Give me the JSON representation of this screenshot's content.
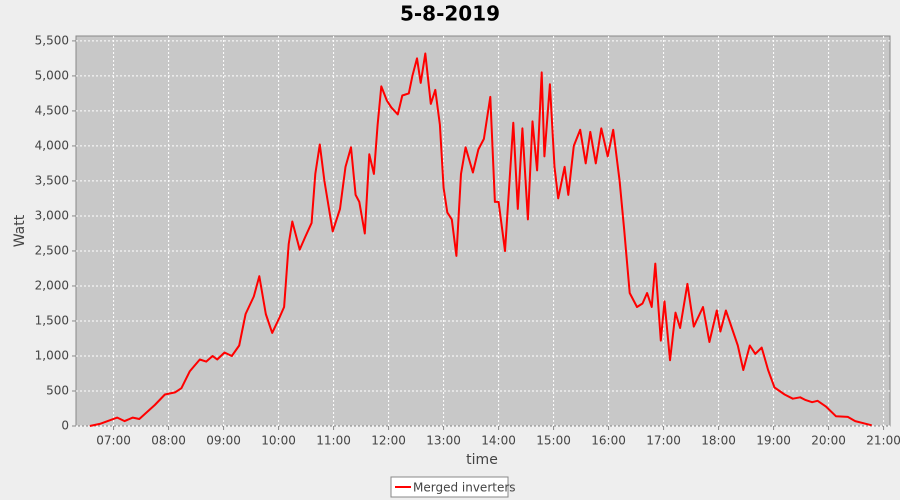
{
  "chart_data": {
    "type": "line",
    "title": "5-8-2019",
    "x_label": "time",
    "y_label": "Watt",
    "x": [
      "06:34",
      "06:45",
      "07:04",
      "07:12",
      "07:21",
      "07:28",
      "07:45",
      "07:56",
      "08:07",
      "08:14",
      "08:23",
      "08:34",
      "08:41",
      "08:48",
      "08:53",
      "09:01",
      "09:09",
      "09:17",
      "09:24",
      "09:33",
      "09:39",
      "09:46",
      "09:53",
      "10:01",
      "10:06",
      "10:11",
      "10:15",
      "10:23",
      "10:29",
      "10:36",
      "10:40",
      "10:45",
      "10:50",
      "10:59",
      "11:07",
      "11:13",
      "11:19",
      "11:24",
      "11:28",
      "11:34",
      "11:39",
      "11:44",
      "11:48",
      "11:52",
      "11:58",
      "12:03",
      "12:10",
      "12:15",
      "12:22",
      "12:26",
      "12:31",
      "12:35",
      "12:40",
      "12:46",
      "12:51",
      "12:56",
      "13:00",
      "13:04",
      "13:09",
      "13:14",
      "13:19",
      "13:24",
      "13:32",
      "13:38",
      "13:44",
      "13:51",
      "13:56",
      "14:00",
      "14:07",
      "14:16",
      "14:21",
      "14:26",
      "14:32",
      "14:37",
      "14:42",
      "14:47",
      "14:50",
      "14:56",
      "15:01",
      "15:05",
      "15:12",
      "15:16",
      "15:22",
      "15:29",
      "15:35",
      "15:40",
      "15:46",
      "15:52",
      "15:59",
      "16:05",
      "16:12",
      "16:17",
      "16:23",
      "16:31",
      "16:37",
      "16:42",
      "16:47",
      "16:51",
      "16:57",
      "17:01",
      "17:07",
      "17:13",
      "17:18",
      "17:26",
      "17:33",
      "17:43",
      "17:50",
      "17:58",
      "18:02",
      "18:08",
      "18:21",
      "18:27",
      "18:34",
      "18:40",
      "18:47",
      "18:54",
      "19:01",
      "19:12",
      "19:21",
      "19:29",
      "19:35",
      "19:42",
      "19:48",
      "19:57",
      "20:08",
      "20:21",
      "20:29",
      "20:38",
      "20:47"
    ],
    "series": [
      {
        "name": "Merged inverters",
        "color": "#ff0000",
        "values": [
          0,
          30,
          120,
          70,
          120,
          100,
          300,
          450,
          480,
          540,
          780,
          950,
          920,
          1000,
          950,
          1050,
          1000,
          1150,
          1600,
          1850,
          2140,
          1600,
          1330,
          1550,
          1700,
          2600,
          2920,
          2520,
          2700,
          2900,
          3600,
          4020,
          3500,
          2780,
          3100,
          3700,
          3980,
          3300,
          3200,
          2750,
          3880,
          3600,
          4300,
          4850,
          4650,
          4550,
          4450,
          4720,
          4750,
          5000,
          5250,
          4900,
          5320,
          4600,
          4800,
          4300,
          3400,
          3050,
          2950,
          2430,
          3600,
          3980,
          3620,
          3950,
          4100,
          4700,
          3200,
          3200,
          2500,
          4330,
          3100,
          4250,
          2950,
          4350,
          3650,
          5050,
          3850,
          4880,
          3700,
          3250,
          3700,
          3300,
          4000,
          4230,
          3750,
          4200,
          3750,
          4250,
          3850,
          4230,
          3500,
          2800,
          1900,
          1700,
          1750,
          1900,
          1700,
          2320,
          1220,
          1780,
          940,
          1620,
          1400,
          2030,
          1420,
          1700,
          1200,
          1650,
          1350,
          1650,
          1150,
          800,
          1150,
          1030,
          1120,
          800,
          550,
          450,
          390,
          410,
          370,
          340,
          360,
          280,
          140,
          130,
          70,
          40,
          10
        ]
      }
    ],
    "xlim": [
      "06:19",
      "21:07"
    ],
    "xticks": [
      "07:00",
      "08:00",
      "09:00",
      "10:00",
      "11:00",
      "12:00",
      "13:00",
      "14:00",
      "15:00",
      "16:00",
      "17:00",
      "18:00",
      "19:00",
      "20:00",
      "21:00"
    ],
    "ylim": [
      0,
      5570
    ],
    "yticks": [
      0,
      500,
      {
        "value": 1000,
        "label": "1,000"
      },
      {
        "value": 1500,
        "label": "1,500"
      },
      {
        "value": 2000,
        "label": "2,000"
      },
      {
        "value": 2500,
        "label": "2,500"
      },
      {
        "value": 3000,
        "label": "3,000"
      },
      {
        "value": 3500,
        "label": "3,500"
      },
      {
        "value": 4000,
        "label": "4,000"
      },
      {
        "value": 4500,
        "label": "4,500"
      },
      {
        "value": 5000,
        "label": "5,000"
      },
      {
        "value": 5500,
        "label": "5,500"
      }
    ],
    "grid": true,
    "legend": "bottom"
  }
}
